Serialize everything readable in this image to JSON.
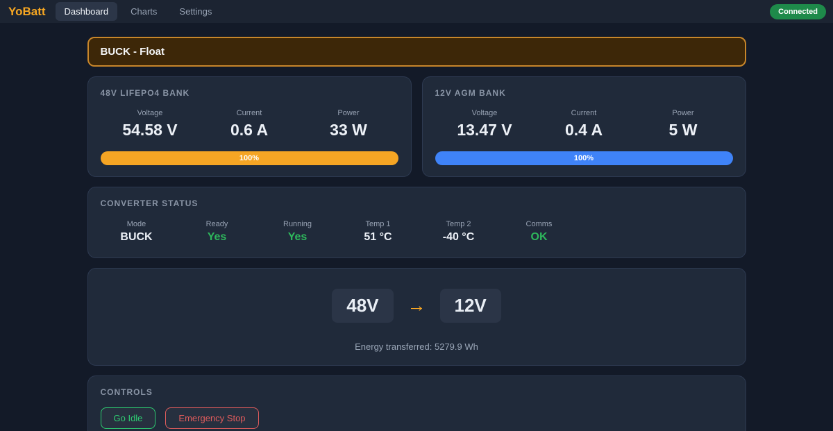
{
  "header": {
    "logo": "YoBatt",
    "nav": [
      {
        "label": "Dashboard",
        "active": true
      },
      {
        "label": "Charts",
        "active": false
      },
      {
        "label": "Settings",
        "active": false
      }
    ],
    "status_badge": "Connected"
  },
  "banner": {
    "text": "BUCK - Float"
  },
  "banks": [
    {
      "title": "48V LIFEPO4 BANK",
      "metrics": [
        {
          "label": "Voltage",
          "value": "54.58 V"
        },
        {
          "label": "Current",
          "value": "0.6 A"
        },
        {
          "label": "Power",
          "value": "33 W"
        }
      ],
      "soc_label": "100%",
      "bar_tone": "orange"
    },
    {
      "title": "12V AGM BANK",
      "metrics": [
        {
          "label": "Voltage",
          "value": "13.47 V"
        },
        {
          "label": "Current",
          "value": "0.4 A"
        },
        {
          "label": "Power",
          "value": "5 W"
        }
      ],
      "soc_label": "100%",
      "bar_tone": "blue"
    }
  ],
  "converter": {
    "title": "CONVERTER STATUS",
    "items": [
      {
        "label": "Mode",
        "value": "BUCK",
        "tone": "neutral"
      },
      {
        "label": "Ready",
        "value": "Yes",
        "tone": "ok"
      },
      {
        "label": "Running",
        "value": "Yes",
        "tone": "ok"
      },
      {
        "label": "Temp 1",
        "value": "51 °C",
        "tone": "neutral"
      },
      {
        "label": "Temp 2",
        "value": "-40 °C",
        "tone": "neutral"
      },
      {
        "label": "Comms",
        "value": "OK",
        "tone": "ok"
      }
    ]
  },
  "flow": {
    "source_label": "48V",
    "arrow_icon": "→",
    "target_label": "12V",
    "energy_text": "Energy transferred: 5279.9 Wh"
  },
  "controls": {
    "title": "CONTROLS",
    "buttons": [
      {
        "label": "Go Idle",
        "tone": "green"
      },
      {
        "label": "Emergency Stop",
        "tone": "red"
      }
    ]
  },
  "colors": {
    "accent_orange": "#f5a524",
    "accent_blue": "#3f83f8",
    "status_green": "#2eb85c",
    "danger_red": "#e05c5c",
    "badge_green": "#1e8a4a",
    "banner_border": "#c8862a",
    "banner_bg": "#3d2708"
  }
}
